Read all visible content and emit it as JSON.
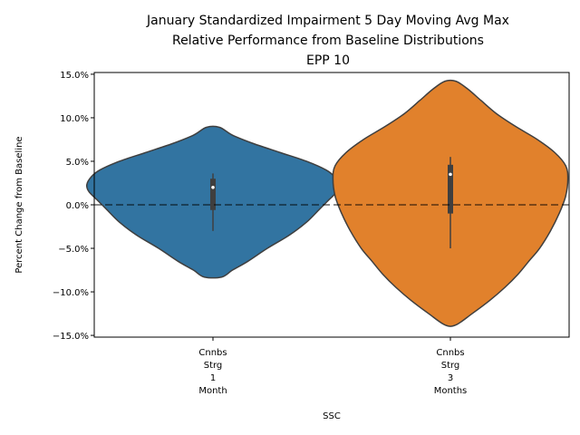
{
  "chart_data": {
    "type": "violin",
    "title": [
      "January Standardized Impairment 5 Day Moving Avg Max",
      "Relative Performance from Baseline Distributions",
      "EPP 10"
    ],
    "xlabel": "SSC",
    "ylabel": "Percent Change from Baseline",
    "ylim": [
      -15.2,
      15.2
    ],
    "yticks": [
      -15.0,
      -10.0,
      -5.0,
      0.0,
      5.0,
      10.0,
      15.0
    ],
    "ytick_labels": [
      "−15.0%",
      "−10.0%",
      "−5.0%",
      "0.0%",
      "5.0%",
      "10.0%",
      "15.0%"
    ],
    "categories": [
      [
        "Cnnbs",
        "Strg",
        "1",
        "Month"
      ],
      [
        "Cnnbs",
        "Strg",
        "3",
        "Months"
      ]
    ],
    "baseline": 0.0,
    "grid": false,
    "legend": "none",
    "violins": [
      {
        "color": "#3274a1",
        "min": -8.3,
        "max": 8.9,
        "q1": -0.6,
        "median": 2.0,
        "q3": 3.0,
        "whisker_low": -3.0,
        "whisker_high": 3.6,
        "density_profile": [
          [
            -8.3,
            0.08
          ],
          [
            -7.5,
            0.18
          ],
          [
            -6.5,
            0.32
          ],
          [
            -5.0,
            0.5
          ],
          [
            -3.5,
            0.7
          ],
          [
            -2.0,
            0.86
          ],
          [
            -0.5,
            0.98
          ],
          [
            0.5,
            1.06
          ],
          [
            1.5,
            1.14
          ],
          [
            2.3,
            1.16
          ],
          [
            3.2,
            1.12
          ],
          [
            4.0,
            1.04
          ],
          [
            5.0,
            0.86
          ],
          [
            6.0,
            0.62
          ],
          [
            7.0,
            0.38
          ],
          [
            8.0,
            0.18
          ],
          [
            8.9,
            0.06
          ]
        ]
      },
      {
        "color": "#e1812c",
        "min": -13.8,
        "max": 14.2,
        "q1": -1.0,
        "median": 3.5,
        "q3": 4.6,
        "whisker_low": -5.0,
        "whisker_high": 5.5,
        "density_profile": [
          [
            -13.8,
            0.05
          ],
          [
            -12.5,
            0.2
          ],
          [
            -11.0,
            0.36
          ],
          [
            -9.5,
            0.5
          ],
          [
            -8.0,
            0.62
          ],
          [
            -6.5,
            0.72
          ],
          [
            -5.0,
            0.82
          ],
          [
            -3.0,
            0.92
          ],
          [
            -1.0,
            1.0
          ],
          [
            1.0,
            1.06
          ],
          [
            3.0,
            1.08
          ],
          [
            4.5,
            1.06
          ],
          [
            6.0,
            0.96
          ],
          [
            7.5,
            0.8
          ],
          [
            9.0,
            0.6
          ],
          [
            10.5,
            0.42
          ],
          [
            12.0,
            0.28
          ],
          [
            13.3,
            0.16
          ],
          [
            14.2,
            0.05
          ]
        ]
      }
    ]
  }
}
